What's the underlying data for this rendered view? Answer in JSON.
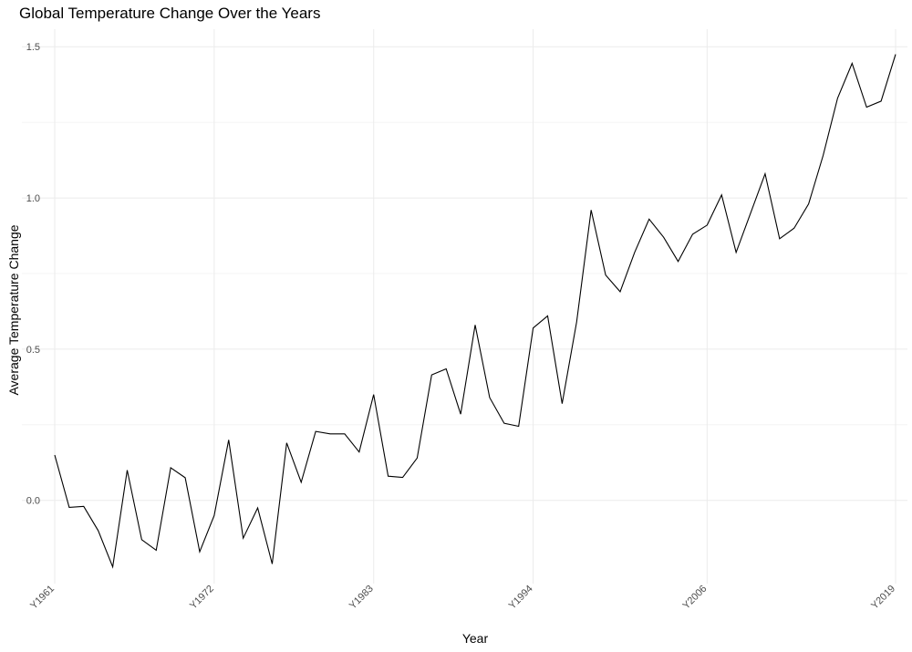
{
  "chart_data": {
    "type": "line",
    "title": "Global Temperature Change Over the Years",
    "xlabel": "Year",
    "ylabel": "Average Temperature Change",
    "ylim": [
      -0.245,
      1.558
    ],
    "yticks": [
      0.0,
      0.5,
      1.0,
      1.5
    ],
    "ytick_labels": [
      "0.0",
      "0.5",
      "1.0",
      "1.5"
    ],
    "xtick_labels": [
      "Y1961",
      "Y1972",
      "Y1983",
      "Y1994",
      "Y2006",
      "Y2019"
    ],
    "grid": true,
    "legend": "none",
    "line_color": "#000000",
    "series": [
      {
        "x": [
          "Y1961",
          "Y1962",
          "Y1963",
          "Y1964",
          "Y1965",
          "Y1966",
          "Y1967",
          "Y1968",
          "Y1969",
          "Y1970",
          "Y1971",
          "Y1972",
          "Y1973",
          "Y1974",
          "Y1975",
          "Y1976",
          "Y1977",
          "Y1978",
          "Y1979",
          "Y1980",
          "Y1981",
          "Y1982",
          "Y1983",
          "Y1984",
          "Y1985",
          "Y1986",
          "Y1987",
          "Y1988",
          "Y1989",
          "Y1990",
          "Y1991",
          "Y1992",
          "Y1993",
          "Y1994",
          "Y1995",
          "Y1996",
          "Y1997",
          "Y1998",
          "Y1999",
          "Y2000",
          "Y2001",
          "Y2002",
          "Y2003",
          "Y2004",
          "Y2005",
          "Y2006",
          "Y2007",
          "Y2008",
          "Y2009",
          "Y2010",
          "Y2011",
          "Y2012",
          "Y2013",
          "Y2014",
          "Y2015",
          "Y2016",
          "Y2017",
          "Y2018",
          "Y2019"
        ],
        "values": [
          0.15,
          -0.023,
          -0.02,
          -0.1,
          -0.22,
          0.1,
          -0.13,
          -0.165,
          0.108,
          0.075,
          -0.17,
          -0.05,
          0.2,
          -0.125,
          -0.025,
          -0.21,
          0.19,
          0.06,
          0.228,
          0.22,
          0.22,
          0.16,
          0.35,
          0.08,
          0.076,
          0.14,
          0.415,
          0.435,
          0.285,
          0.58,
          0.34,
          0.255,
          0.245,
          0.57,
          0.61,
          0.32,
          0.59,
          0.96,
          0.745,
          0.69,
          0.82,
          0.93,
          0.87,
          0.79,
          0.88,
          0.91,
          1.01,
          0.82,
          0.95,
          1.08,
          0.865,
          0.9,
          0.98,
          1.14,
          1.33,
          1.445,
          1.3,
          1.32,
          1.475
        ]
      }
    ]
  }
}
